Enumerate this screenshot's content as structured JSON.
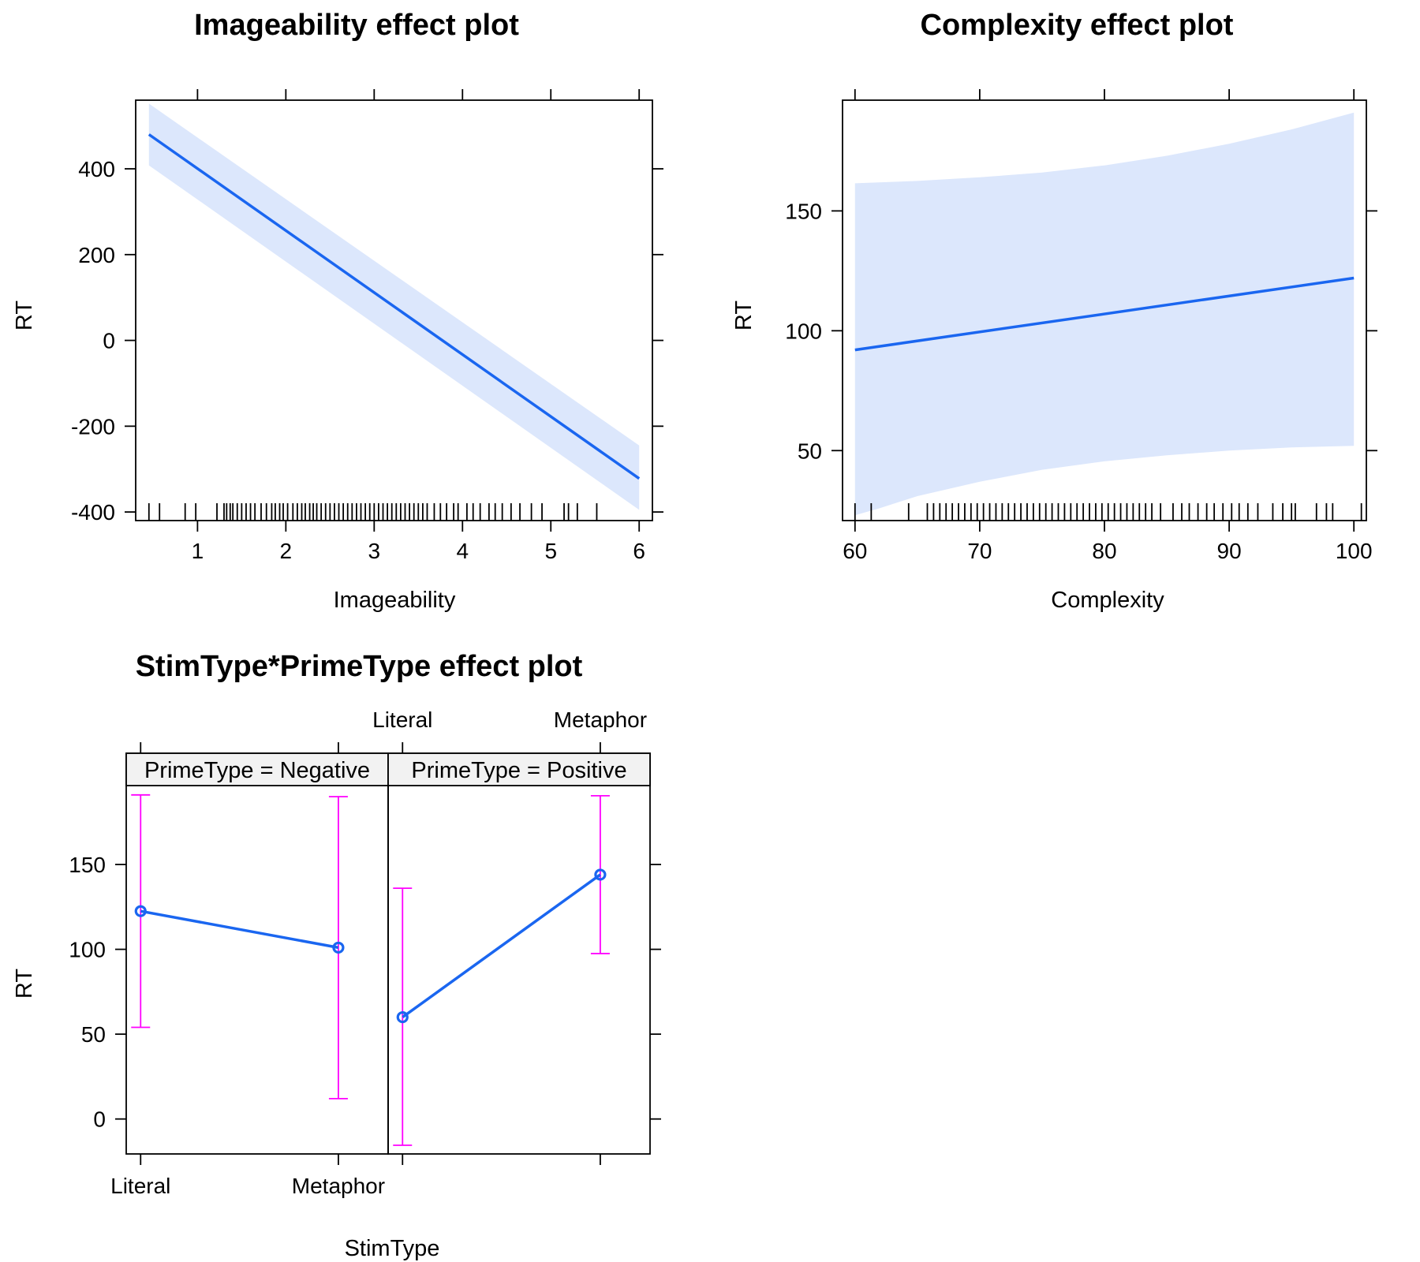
{
  "chart_data": [
    {
      "type": "line",
      "title": "Imageability effect plot",
      "xlabel": "Imageability",
      "ylabel": "RT",
      "xlim": [
        0.3,
        6.15
      ],
      "ylim": [
        -420,
        560
      ],
      "x_ticks": [
        1,
        2,
        3,
        4,
        5,
        6
      ],
      "y_ticks": [
        -400,
        -200,
        0,
        200,
        400
      ],
      "x_tick_labels": [
        "1",
        "2",
        "3",
        "4",
        "5",
        "6"
      ],
      "y_tick_labels": [
        "-400",
        "-200",
        "0",
        "200",
        "400"
      ],
      "fit": {
        "x": [
          0.45,
          6.0
        ],
        "y": [
          480,
          -322
        ]
      },
      "band_lower": {
        "x": [
          0.45,
          6.0
        ],
        "y": [
          408,
          -395
        ]
      },
      "band_upper": {
        "x": [
          0.45,
          6.0
        ],
        "y": [
          552,
          -245
        ]
      },
      "rug": [
        0.45,
        0.57,
        0.86,
        0.98,
        1.22,
        1.3,
        1.33,
        1.37,
        1.4,
        1.45,
        1.5,
        1.55,
        1.6,
        1.65,
        1.72,
        1.78,
        1.84,
        1.88,
        1.93,
        1.97,
        2.02,
        2.08,
        2.13,
        2.18,
        2.22,
        2.27,
        2.31,
        2.35,
        2.4,
        2.45,
        2.5,
        2.55,
        2.6,
        2.65,
        2.7,
        2.75,
        2.8,
        2.85,
        2.9,
        2.95,
        3.0,
        3.05,
        3.1,
        3.15,
        3.2,
        3.25,
        3.3,
        3.35,
        3.4,
        3.45,
        3.5,
        3.55,
        3.6,
        3.68,
        3.75,
        3.82,
        3.9,
        3.95,
        4.05,
        4.12,
        4.2,
        4.3,
        4.37,
        4.45,
        4.55,
        4.65,
        4.78,
        4.9,
        5.15,
        5.2,
        5.3,
        5.52
      ],
      "grid": false,
      "line_color": "#1a66f0",
      "band_color": "#dce7fc"
    },
    {
      "type": "line",
      "title": "Complexity effect plot",
      "xlabel": "Complexity",
      "ylabel": "RT",
      "xlim": [
        59.0,
        101.0
      ],
      "ylim": [
        20.8,
        196.2
      ],
      "x_ticks": [
        60,
        70,
        80,
        90,
        100
      ],
      "y_ticks": [
        50,
        100,
        150
      ],
      "x_tick_labels": [
        "60",
        "70",
        "80",
        "90",
        "100"
      ],
      "y_tick_labels": [
        "50",
        "100",
        "150"
      ],
      "fit": {
        "x": [
          60,
          100
        ],
        "y": [
          92,
          122
        ]
      },
      "band_lower": {
        "x": [
          60,
          62,
          65,
          70,
          75,
          80,
          85,
          90,
          95,
          100
        ],
        "y": [
          23,
          26,
          31,
          37,
          42,
          45.5,
          48,
          50,
          51.3,
          52
        ]
      },
      "band_upper": {
        "x": [
          60,
          65,
          70,
          75,
          80,
          85,
          90,
          95,
          100
        ],
        "y": [
          161.5,
          162.5,
          164,
          166,
          169,
          173,
          178,
          184,
          191
        ]
      },
      "rug": [
        60.0,
        61.3,
        64.3,
        65.8,
        66.3,
        66.8,
        67.3,
        67.8,
        68.3,
        68.8,
        69.3,
        69.8,
        70.3,
        70.8,
        71.3,
        71.8,
        72.3,
        72.8,
        73.3,
        73.8,
        74.3,
        74.8,
        75.3,
        75.8,
        76.3,
        76.8,
        77.3,
        77.8,
        78.3,
        78.8,
        79.3,
        79.8,
        80.3,
        80.8,
        81.3,
        81.8,
        82.3,
        82.8,
        83.3,
        83.8,
        84.5,
        85.5,
        86.2,
        86.8,
        87.5,
        88.2,
        88.8,
        89.5,
        90.2,
        90.8,
        91.5,
        92.3,
        93.5,
        94.3,
        95.0,
        95.3,
        97.0,
        97.8,
        98.3,
        100.6
      ],
      "grid": false,
      "line_color": "#1a66f0",
      "band_color": "#dce7fc"
    },
    {
      "type": "line",
      "title": "StimType*PrimeType effect plot",
      "xlabel": "StimType",
      "ylabel": "RT",
      "categories": [
        "Literal",
        "Metaphor"
      ],
      "ylim": [
        -20.6,
        196.5
      ],
      "y_ticks": [
        0,
        50,
        100,
        150
      ],
      "y_tick_labels": [
        "0",
        "50",
        "100",
        "150"
      ],
      "panels": [
        {
          "strip": "PrimeType = Negative",
          "values": [
            122.5,
            101
          ],
          "lower": [
            54,
            12
          ],
          "upper": [
            191,
            190
          ]
        },
        {
          "strip": "PrimeType = Positive",
          "values": [
            60,
            144
          ],
          "lower": [
            -15.5,
            97.5
          ],
          "upper": [
            136,
            190.5
          ]
        }
      ],
      "grid": false,
      "line_color": "#1a66f0",
      "errorbar_color": "#ff00ff",
      "strip_color": "#f2f2f2"
    }
  ]
}
